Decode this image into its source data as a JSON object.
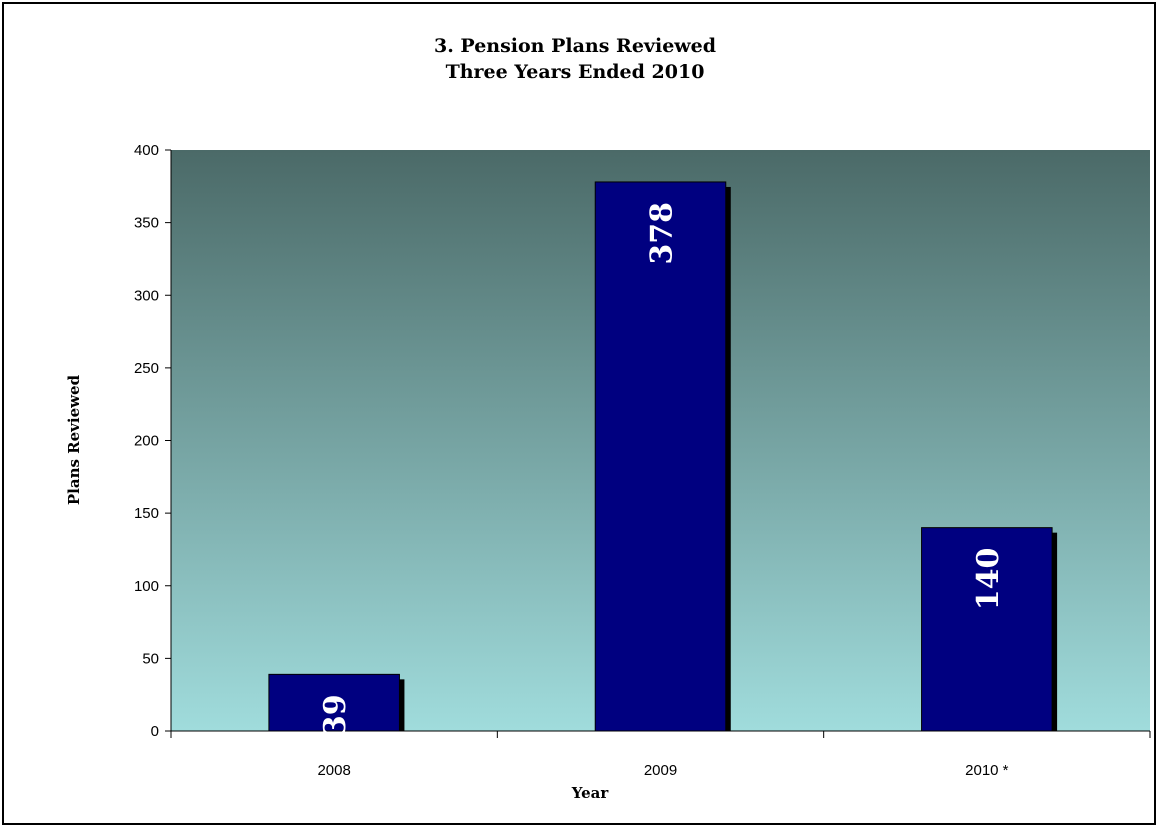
{
  "chart_data": {
    "type": "bar",
    "title": "3. Pension Plans Reviewed",
    "subtitle": "Three Years Ended 2010",
    "xlabel": "Year",
    "ylabel": "Plans Reviewed",
    "categories": [
      "2008",
      "2009",
      "2010 *"
    ],
    "values": [
      39,
      378,
      140
    ],
    "ylim": [
      0,
      400
    ],
    "yticks": [
      0,
      50,
      100,
      150,
      200,
      250,
      300,
      350,
      400
    ],
    "grid": false,
    "legend": "none",
    "colors": {
      "bar": "#000080",
      "bar_shadow": "#000000",
      "plot_bg_top": "#4b6a68",
      "plot_bg_bottom": "#a0dcdc",
      "label": "#ffffff"
    }
  }
}
